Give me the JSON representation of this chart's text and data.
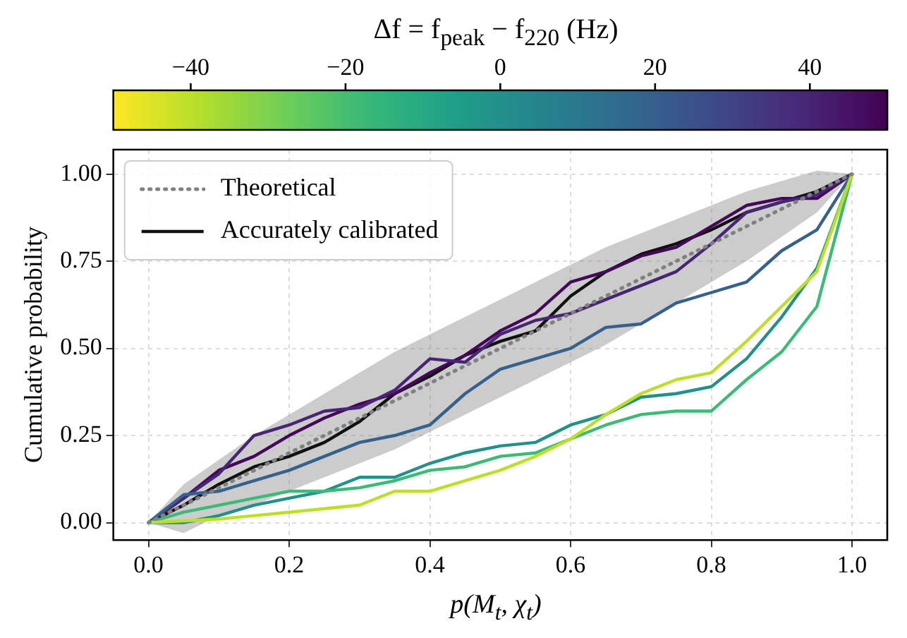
{
  "chart_data": {
    "type": "line",
    "clabel": "Δf = f$_{peak}$ − f$_{220}$ (Hz)",
    "xlabel": "p(M$_{t}$, χ$_{t}$)",
    "ylabel": "Cumulative probability",
    "x": [
      0,
      0.05,
      0.1,
      0.15,
      0.2,
      0.25,
      0.3,
      0.35,
      0.4,
      0.45,
      0.5,
      0.55,
      0.6,
      0.65,
      0.7,
      0.75,
      0.8,
      0.85,
      0.9,
      0.95,
      1
    ],
    "series": [
      {
        "name": "Theoretical",
        "color": "#808080",
        "line_style": "dotted",
        "values": [
          0,
          0.05,
          0.1,
          0.15,
          0.2,
          0.25,
          0.3,
          0.35,
          0.4,
          0.45,
          0.5,
          0.55,
          0.6,
          0.65,
          0.7,
          0.75,
          0.8,
          0.85,
          0.9,
          0.95,
          1
        ],
        "lower": [
          0,
          -0.03,
          0.02,
          0.05,
          0.09,
          0.13,
          0.17,
          0.21,
          0.26,
          0.31,
          0.36,
          0.41,
          0.46,
          0.51,
          0.57,
          0.63,
          0.69,
          0.75,
          0.82,
          0.89,
          1
        ],
        "upper": [
          0,
          0.11,
          0.18,
          0.25,
          0.31,
          0.37,
          0.43,
          0.49,
          0.54,
          0.59,
          0.64,
          0.69,
          0.74,
          0.79,
          0.83,
          0.87,
          0.91,
          0.95,
          0.98,
          1.01,
          1
        ]
      },
      {
        "color": "#bddf26",
        "values": [
          0,
          0.005,
          0.01,
          0.02,
          0.03,
          0.04,
          0.05,
          0.09,
          0.09,
          0.12,
          0.15,
          0.19,
          0.24,
          0.31,
          0.37,
          0.41,
          0.43,
          0.52,
          0.62,
          0.72,
          1
        ]
      },
      {
        "color": "#3bbb75",
        "values": [
          0,
          0.03,
          0.05,
          0.07,
          0.09,
          0.09,
          0.1,
          0.12,
          0.15,
          0.16,
          0.19,
          0.2,
          0.24,
          0.28,
          0.31,
          0.32,
          0.32,
          0.41,
          0.49,
          0.62,
          1
        ]
      },
      {
        "color": "#21918c",
        "values": [
          0,
          0,
          0.02,
          0.05,
          0.07,
          0.09,
          0.13,
          0.13,
          0.17,
          0.2,
          0.22,
          0.23,
          0.28,
          0.31,
          0.36,
          0.37,
          0.39,
          0.47,
          0.59,
          0.73,
          1
        ]
      },
      {
        "color": "#34618d",
        "values": [
          0,
          0.08,
          0.09,
          0.12,
          0.15,
          0.19,
          0.23,
          0.25,
          0.28,
          0.37,
          0.44,
          0.47,
          0.5,
          0.56,
          0.57,
          0.63,
          0.66,
          0.69,
          0.78,
          0.84,
          1
        ]
      },
      {
        "color": "#482475",
        "values": [
          0,
          0.07,
          0.14,
          0.25,
          0.28,
          0.32,
          0.33,
          0.38,
          0.47,
          0.46,
          0.54,
          0.58,
          0.6,
          0.64,
          0.68,
          0.72,
          0.8,
          0.89,
          0.92,
          0.94,
          1
        ]
      },
      {
        "color": "#450559",
        "values": [
          0,
          0.07,
          0.15,
          0.19,
          0.25,
          0.3,
          0.34,
          0.37,
          0.43,
          0.48,
          0.55,
          0.6,
          0.69,
          0.72,
          0.765,
          0.79,
          0.85,
          0.91,
          0.93,
          0.93,
          1
        ]
      },
      {
        "name": "Accurately calibrated",
        "color": "#111111",
        "values": [
          0,
          0.05,
          0.11,
          0.16,
          0.19,
          0.23,
          0.29,
          0.37,
          0.42,
          0.48,
          0.52,
          0.55,
          0.65,
          0.72,
          0.77,
          0.8,
          0.84,
          0.89,
          0.92,
          0.95,
          1
        ]
      }
    ],
    "xlim": [
      -0.05,
      1.05
    ],
    "ylim": [
      -0.05,
      1.07
    ],
    "xticks": [
      {
        "value": 0,
        "label": "0.0"
      },
      {
        "value": 0.2,
        "label": "0.2"
      },
      {
        "value": 0.4,
        "label": "0.4"
      },
      {
        "value": 0.6,
        "label": "0.6"
      },
      {
        "value": 0.8,
        "label": "0.8"
      },
      {
        "value": 1,
        "label": "1.0"
      }
    ],
    "yticks": [
      {
        "value": 0,
        "label": "0.00"
      },
      {
        "value": 0.25,
        "label": "0.25"
      },
      {
        "value": 0.5,
        "label": "0.50"
      },
      {
        "value": 0.75,
        "label": "0.75"
      },
      {
        "value": 1,
        "label": "1.00"
      }
    ],
    "clim": [
      -50,
      50
    ],
    "cticks": [
      {
        "value": -40,
        "label": "−40"
      },
      {
        "value": -20,
        "label": "−20"
      },
      0,
      20,
      40
    ],
    "grid": true,
    "legend": "top left",
    "marker": "none",
    "line_style": "solid"
  }
}
